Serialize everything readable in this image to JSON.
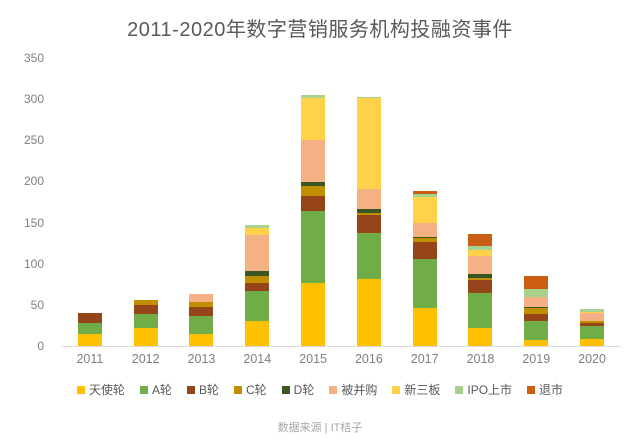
{
  "header": {
    "title": "2011-2020年数字营销服务机构投融资事件"
  },
  "footer": {
    "source": "数据来源 | IT桔子"
  },
  "chart_data": {
    "type": "bar",
    "stacked": true,
    "title": "2011-2020年数字营销服务机构投融资事件",
    "xlabel": "",
    "ylabel": "",
    "ylim": [
      0,
      350
    ],
    "yticks": [
      0,
      50,
      100,
      150,
      200,
      250,
      300,
      350
    ],
    "grid": false,
    "legend_position": "bottom",
    "categories": [
      "2011",
      "2012",
      "2013",
      "2014",
      "2015",
      "2016",
      "2017",
      "2018",
      "2019",
      "2020"
    ],
    "series": [
      {
        "name": "天使轮",
        "color": "#FFC000",
        "values": [
          14,
          22,
          15,
          31,
          77,
          81,
          46,
          22,
          7,
          8
        ]
      },
      {
        "name": "A轮",
        "color": "#70AD47",
        "values": [
          14,
          17,
          22,
          36,
          87,
          56,
          60,
          42,
          24,
          16
        ]
      },
      {
        "name": "B轮",
        "color": "#96451A",
        "values": [
          12,
          11,
          10,
          10,
          18,
          22,
          20,
          16,
          8,
          4
        ]
      },
      {
        "name": "C轮",
        "color": "#BF8F00",
        "values": [
          0,
          6,
          6,
          8,
          12,
          3,
          5,
          3,
          7,
          2
        ]
      },
      {
        "name": "D轮",
        "color": "#385723",
        "values": [
          0,
          0,
          0,
          6,
          5,
          4,
          2,
          5,
          2,
          0
        ]
      },
      {
        "name": "被并购",
        "color": "#F4B183",
        "values": [
          0,
          0,
          10,
          44,
          51,
          25,
          16,
          22,
          12,
          10
        ]
      },
      {
        "name": "新三板",
        "color": "#FFD24A",
        "values": [
          0,
          0,
          0,
          9,
          52,
          110,
          32,
          7,
          0,
          1
        ]
      },
      {
        "name": "IPO上市",
        "color": "#A9D18E",
        "values": [
          0,
          0,
          0,
          3,
          3,
          2,
          4,
          5,
          9,
          4
        ]
      },
      {
        "name": "退市",
        "color": "#CC5E14",
        "values": [
          0,
          0,
          0,
          0,
          0,
          0,
          3,
          14,
          16,
          0
        ]
      }
    ],
    "totals": [
      40,
      56,
      63,
      147,
      305,
      303,
      188,
      136,
      85,
      45
    ]
  }
}
